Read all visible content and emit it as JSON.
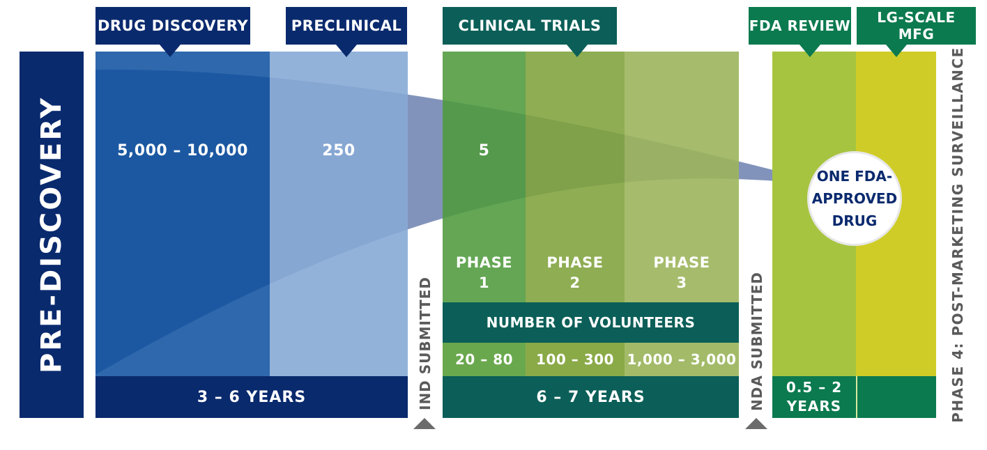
{
  "stages": {
    "pre_discovery": "PRE-DISCOVERY",
    "drug_discovery": "DRUG DISCOVERY",
    "preclinical": "PRECLINICAL",
    "clinical_trials": "CLINICAL TRIALS",
    "fda_review": "FDA REVIEW",
    "lg_scale_mfg": "LG-SCALE MFG",
    "post_marketing": "PHASE 4: POST-MARKETING SURVEILLANCE"
  },
  "compound_counts": {
    "discovery": "5,000 – 10,000",
    "preclinical": "250",
    "clinical": "5"
  },
  "approved_drug": {
    "line1": "ONE FDA-",
    "line2": "APPROVED",
    "line3": "DRUG"
  },
  "phases": [
    {
      "line1": "PHASE",
      "line2": "1"
    },
    {
      "line1": "PHASE",
      "line2": "2"
    },
    {
      "line1": "PHASE",
      "line2": "3"
    }
  ],
  "volunteers": {
    "label": "NUMBER OF VOLUNTEERS",
    "values": [
      "20 – 80",
      "100 – 300",
      "1,000 – 3,000"
    ]
  },
  "milestones": {
    "ind": "IND SUBMITTED",
    "nda": "NDA SUBMITTED"
  },
  "durations": {
    "early": "3 – 6 YEARS",
    "clinical": "6 – 7 YEARS",
    "review_line1": "0.5 – 2",
    "review_line2": "YEARS"
  },
  "colors": {
    "navy": "#0a2a6e",
    "discovery_blue": "#0a4d9e",
    "preclinical_blue": "#87aad6",
    "dark_teal": "#0b5f58",
    "header_green": "#0b7a4f",
    "phase1_green": "#4e9a3c",
    "phase2_green": "#7fa23a",
    "phase3_green": "#9cb55c",
    "fda_green": "#a7c440",
    "mfg_yellow": "#cfcc27"
  }
}
